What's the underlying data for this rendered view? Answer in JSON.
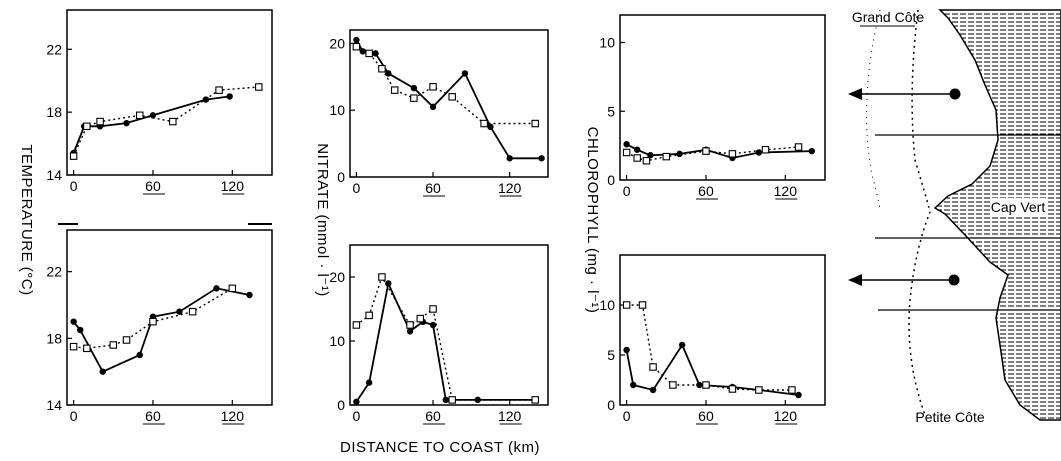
{
  "figure": {
    "x_axis_label": "DISTANCE TO COAST (km)",
    "map_labels": [
      "Grand Côte",
      "Cap Vert",
      "Petite Côte"
    ]
  },
  "chart_data": [
    {
      "id": "temp_top",
      "type": "line",
      "ylabel": "TEMPERATURE (°C)",
      "xlim": [
        -5,
        150
      ],
      "ylim": [
        14,
        24.5
      ],
      "xticks": [
        0,
        60,
        120
      ],
      "xtick_labels": [
        "0",
        "60",
        "120"
      ],
      "yticks": [
        14,
        18,
        22
      ],
      "ytick_labels": [
        "14",
        "18",
        "22"
      ],
      "series": [
        {
          "marker": "filled-circle",
          "line": "solid",
          "points": [
            [
              0,
              15.4
            ],
            [
              8,
              17.1
            ],
            [
              20,
              17.1
            ],
            [
              40,
              17.3
            ],
            [
              60,
              17.8
            ],
            [
              100,
              18.8
            ],
            [
              118,
              19.0
            ]
          ]
        },
        {
          "marker": "open-square",
          "line": "dotted",
          "points": [
            [
              0,
              15.2
            ],
            [
              10,
              17.1
            ],
            [
              20,
              17.4
            ],
            [
              50,
              17.8
            ],
            [
              75,
              17.4
            ],
            [
              110,
              19.4
            ],
            [
              140,
              19.6
            ]
          ]
        }
      ]
    },
    {
      "id": "nitrate_top",
      "type": "line",
      "ylabel": "NITRATE (mmol · l⁻¹)",
      "xlim": [
        -5,
        150
      ],
      "ylim": [
        0,
        22
      ],
      "xticks": [
        0,
        60,
        120
      ],
      "xtick_labels": [
        "0",
        "60",
        "120"
      ],
      "yticks": [
        0,
        10,
        20
      ],
      "ytick_labels": [
        "0",
        "10",
        "20"
      ],
      "series": [
        {
          "marker": "filled-circle",
          "line": "solid",
          "points": [
            [
              0,
              20.5
            ],
            [
              5,
              18.8
            ],
            [
              15,
              18.5
            ],
            [
              25,
              15.5
            ],
            [
              45,
              13.3
            ],
            [
              60,
              10.5
            ],
            [
              85,
              15.5
            ],
            [
              105,
              7.5
            ],
            [
              120,
              2.8
            ],
            [
              145,
              2.8
            ]
          ]
        },
        {
          "marker": "open-square",
          "line": "dotted",
          "points": [
            [
              0,
              19.5
            ],
            [
              10,
              18.5
            ],
            [
              20,
              16.2
            ],
            [
              30,
              13.0
            ],
            [
              45,
              11.8
            ],
            [
              60,
              13.5
            ],
            [
              75,
              12.0
            ],
            [
              100,
              8.0
            ],
            [
              140,
              8.0
            ]
          ]
        }
      ]
    },
    {
      "id": "chl_top",
      "type": "line",
      "ylabel": "CHLOROPHYLL (mg · l⁻¹)",
      "xlim": [
        -5,
        150
      ],
      "ylim": [
        0,
        12
      ],
      "xticks": [
        0,
        60,
        120
      ],
      "xtick_labels": [
        "0",
        "60",
        "120"
      ],
      "yticks": [
        0,
        5,
        10
      ],
      "ytick_labels": [
        "0",
        "5",
        "10"
      ],
      "series": [
        {
          "marker": "filled-circle",
          "line": "solid",
          "points": [
            [
              0,
              2.6
            ],
            [
              8,
              2.2
            ],
            [
              18,
              1.8
            ],
            [
              40,
              1.9
            ],
            [
              60,
              2.2
            ],
            [
              80,
              1.6
            ],
            [
              100,
              2.0
            ],
            [
              140,
              2.1
            ]
          ]
        },
        {
          "marker": "open-square",
          "line": "dotted",
          "points": [
            [
              0,
              2.0
            ],
            [
              8,
              1.6
            ],
            [
              15,
              1.4
            ],
            [
              30,
              1.7
            ],
            [
              60,
              2.1
            ],
            [
              80,
              1.9
            ],
            [
              105,
              2.2
            ],
            [
              130,
              2.4
            ]
          ]
        }
      ]
    },
    {
      "id": "temp_bottom",
      "type": "line",
      "ylabel": "",
      "xlim": [
        -5,
        150
      ],
      "ylim": [
        14,
        24.5
      ],
      "xticks": [
        0,
        60,
        120
      ],
      "xtick_labels": [
        "0",
        "60",
        "120"
      ],
      "yticks": [
        14,
        18,
        22
      ],
      "ytick_labels": [
        "14",
        "18",
        "22"
      ],
      "series": [
        {
          "marker": "filled-circle",
          "line": "solid",
          "points": [
            [
              0,
              19.0
            ],
            [
              5,
              18.5
            ],
            [
              22,
              16.0
            ],
            [
              50,
              17.0
            ],
            [
              60,
              19.3
            ],
            [
              80,
              19.6
            ],
            [
              108,
              21.0
            ],
            [
              133,
              20.6
            ]
          ]
        },
        {
          "marker": "open-square",
          "line": "dotted",
          "points": [
            [
              0,
              17.5
            ],
            [
              10,
              17.4
            ],
            [
              30,
              17.6
            ],
            [
              40,
              17.9
            ],
            [
              60,
              19.0
            ],
            [
              90,
              19.6
            ],
            [
              120,
              21.0
            ]
          ]
        }
      ]
    },
    {
      "id": "nitrate_bottom",
      "type": "line",
      "ylabel": "",
      "xlim": [
        -5,
        150
      ],
      "ylim": [
        0,
        25
      ],
      "xticks": [
        0,
        60,
        120
      ],
      "xtick_labels": [
        "0",
        "60",
        "120"
      ],
      "yticks": [
        0,
        10,
        20
      ],
      "ytick_labels": [
        "0",
        "10",
        "20"
      ],
      "series": [
        {
          "marker": "filled-circle",
          "line": "solid",
          "points": [
            [
              0,
              0.5
            ],
            [
              10,
              3.5
            ],
            [
              25,
              19.0
            ],
            [
              42,
              11.5
            ],
            [
              52,
              13.0
            ],
            [
              60,
              12.5
            ],
            [
              70,
              0.8
            ],
            [
              95,
              0.8
            ],
            [
              140,
              0.8
            ]
          ]
        },
        {
          "marker": "open-square",
          "line": "dotted",
          "points": [
            [
              0,
              12.5
            ],
            [
              10,
              14.0
            ],
            [
              20,
              20.0
            ],
            [
              42,
              12.5
            ],
            [
              50,
              13.5
            ],
            [
              60,
              15.0
            ],
            [
              75,
              0.8
            ],
            [
              140,
              0.8
            ]
          ]
        }
      ]
    },
    {
      "id": "chl_bottom",
      "type": "line",
      "ylabel": "",
      "xlim": [
        -5,
        150
      ],
      "ylim": [
        0,
        15
      ],
      "xticks": [
        0,
        60,
        120
      ],
      "xtick_labels": [
        "0",
        "60",
        "120"
      ],
      "yticks": [
        0,
        5,
        10
      ],
      "ytick_labels": [
        "0",
        "5",
        "10"
      ],
      "series": [
        {
          "marker": "filled-circle",
          "line": "solid",
          "points": [
            [
              0,
              5.5
            ],
            [
              5,
              2.0
            ],
            [
              20,
              1.5
            ],
            [
              42,
              6.0
            ],
            [
              55,
              2.0
            ],
            [
              80,
              1.8
            ],
            [
              100,
              1.5
            ],
            [
              130,
              1.0
            ]
          ]
        },
        {
          "marker": "open-square",
          "line": "dotted",
          "points": [
            [
              0,
              10.0
            ],
            [
              12,
              10.0
            ],
            [
              20,
              3.8
            ],
            [
              35,
              2.0
            ],
            [
              60,
              2.0
            ],
            [
              80,
              1.6
            ],
            [
              100,
              1.5
            ],
            [
              125,
              1.5
            ]
          ]
        }
      ]
    }
  ]
}
